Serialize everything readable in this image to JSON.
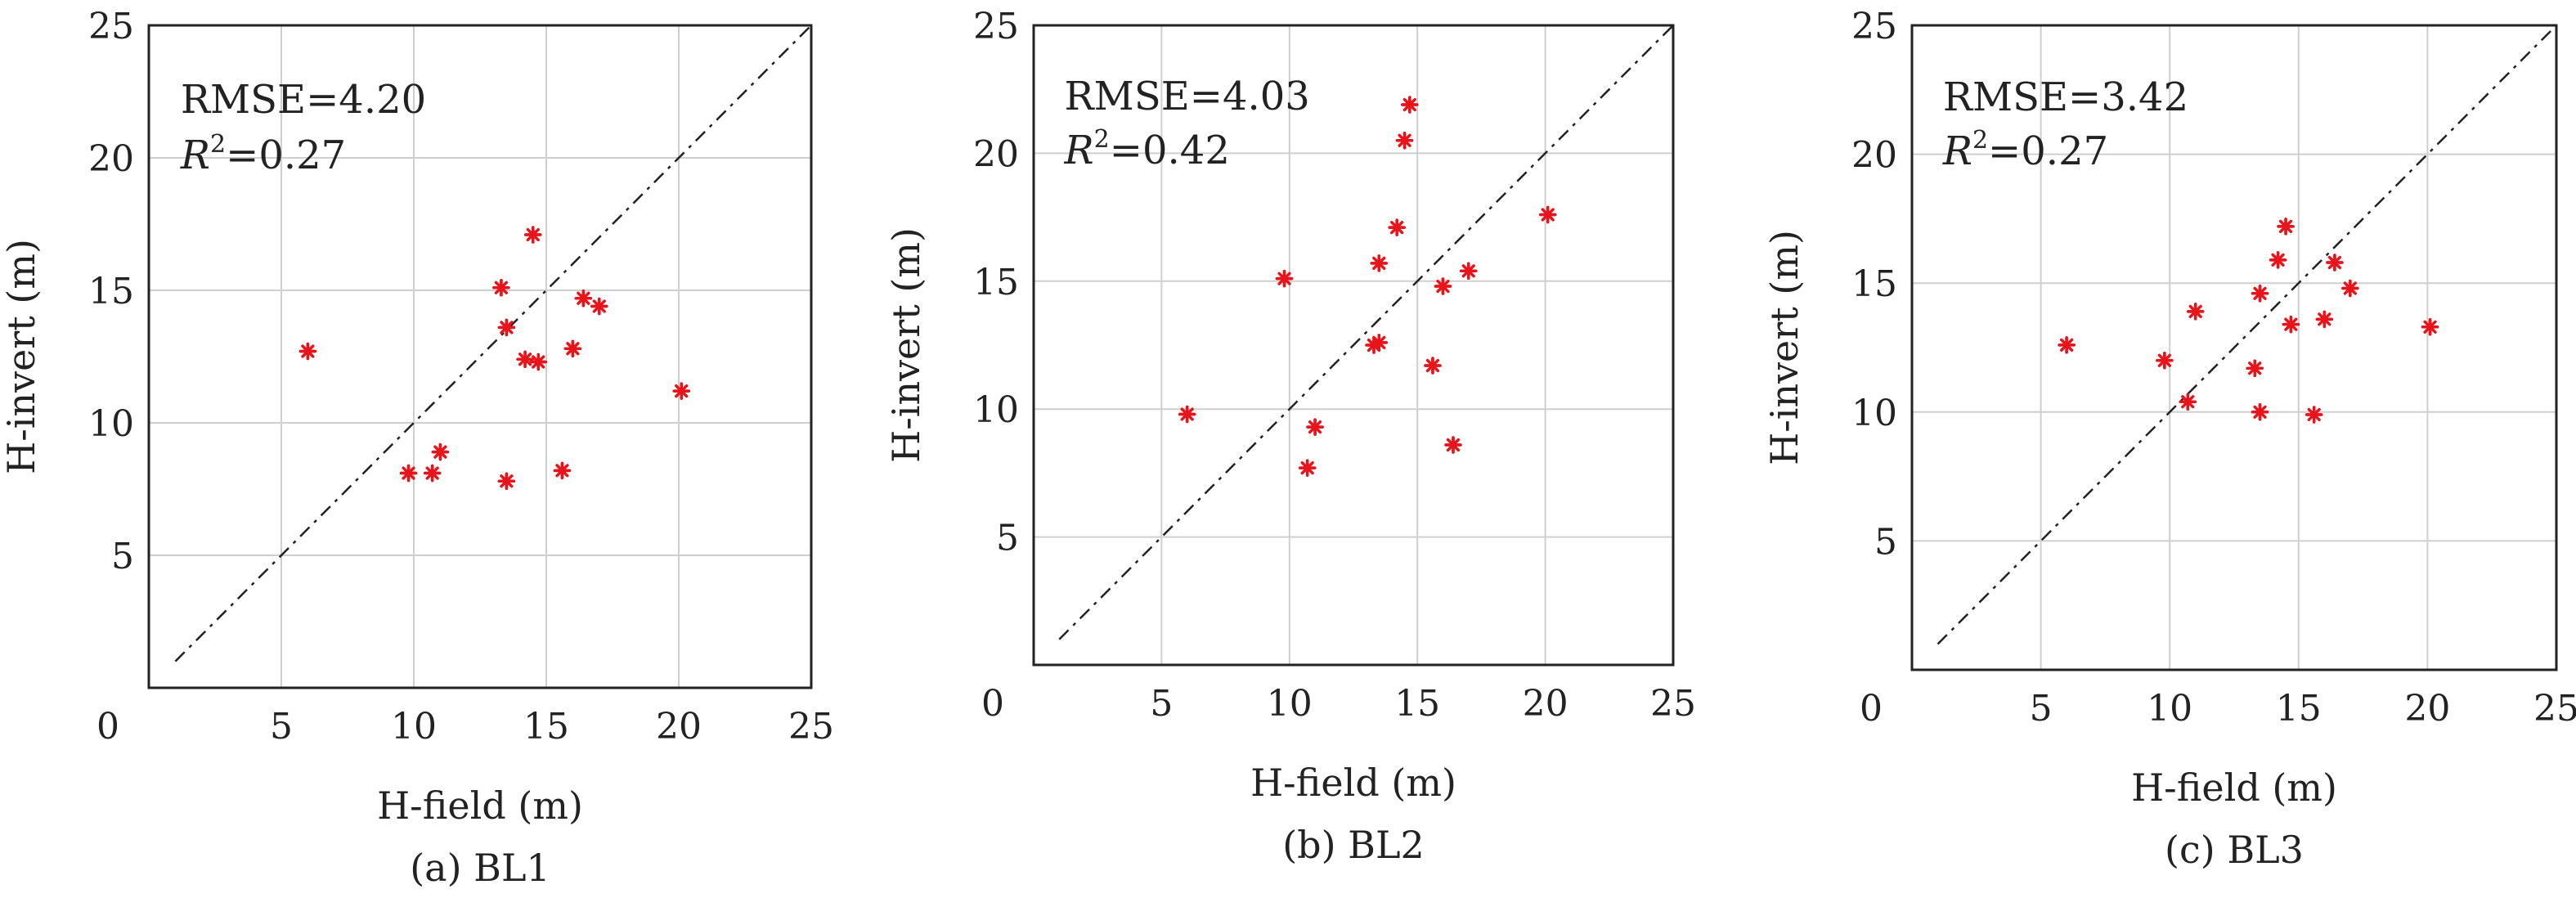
{
  "chart_data": [
    {
      "type": "scatter",
      "caption": "(a) BL1",
      "xlabel": "H-field (m)",
      "ylabel": "H-invert (m)",
      "xlim": [
        0,
        25
      ],
      "ylim": [
        0,
        25
      ],
      "xticks": [
        "0",
        "5",
        "10",
        "15",
        "20",
        "25"
      ],
      "yticks": [
        "5",
        "10",
        "15",
        "20",
        "25"
      ],
      "grid": true,
      "reference_line": {
        "style": "dashed",
        "from": [
          1,
          1
        ],
        "to": [
          25,
          25
        ]
      },
      "rmse_text": "RMSE=4.20",
      "r2_value": "=0.27",
      "marker_color": "#e8141c",
      "x": [
        6.0,
        9.8,
        10.7,
        11.0,
        13.3,
        13.5,
        13.5,
        14.2,
        14.5,
        14.7,
        15.6,
        16.0,
        16.4,
        17.0,
        20.1
      ],
      "y": [
        12.7,
        8.1,
        8.1,
        8.9,
        15.1,
        13.6,
        7.8,
        12.4,
        17.1,
        12.3,
        8.2,
        12.8,
        14.7,
        14.4,
        11.2
      ]
    },
    {
      "type": "scatter",
      "caption": "(b) BL2",
      "xlabel": "H-field (m)",
      "ylabel": "H-invert (m)",
      "xlim": [
        0,
        25
      ],
      "ylim": [
        0,
        25
      ],
      "xticks": [
        "0",
        "5",
        "10",
        "15",
        "20",
        "25"
      ],
      "yticks": [
        "5",
        "10",
        "15",
        "20",
        "25"
      ],
      "grid": true,
      "reference_line": {
        "style": "dashed",
        "from": [
          1,
          1
        ],
        "to": [
          25,
          25
        ]
      },
      "rmse_text": "RMSE=4.03",
      "r2_value": "=0.42",
      "marker_color": "#e8141c",
      "x": [
        6.0,
        9.8,
        10.7,
        11.0,
        13.3,
        13.5,
        13.5,
        14.2,
        14.5,
        14.7,
        15.6,
        16.0,
        16.4,
        17.0,
        20.1
      ],
      "y": [
        9.8,
        15.1,
        7.7,
        9.3,
        12.5,
        15.7,
        12.6,
        17.1,
        20.5,
        21.9,
        11.7,
        14.8,
        8.6,
        15.4,
        17.6
      ]
    },
    {
      "type": "scatter",
      "caption": "(c) BL3",
      "xlabel": "H-field (m)",
      "ylabel": "H-invert (m)",
      "xlim": [
        0,
        25
      ],
      "ylim": [
        0,
        25
      ],
      "xticks": [
        "0",
        "5",
        "10",
        "15",
        "20",
        "25"
      ],
      "yticks": [
        "5",
        "10",
        "15",
        "20",
        "25"
      ],
      "grid": true,
      "reference_line": {
        "style": "dashed",
        "from": [
          1,
          1
        ],
        "to": [
          25,
          25
        ]
      },
      "rmse_text": "RMSE=3.42",
      "r2_value": "=0.27",
      "marker_color": "#e8141c",
      "x": [
        6.0,
        9.8,
        10.7,
        11.0,
        13.3,
        13.5,
        13.5,
        14.2,
        14.5,
        14.7,
        15.6,
        16.0,
        16.4,
        17.0,
        20.1
      ],
      "y": [
        12.6,
        12.0,
        10.4,
        13.9,
        11.7,
        14.6,
        10.0,
        15.9,
        17.2,
        13.4,
        9.9,
        13.6,
        15.8,
        14.8,
        13.3
      ]
    }
  ]
}
